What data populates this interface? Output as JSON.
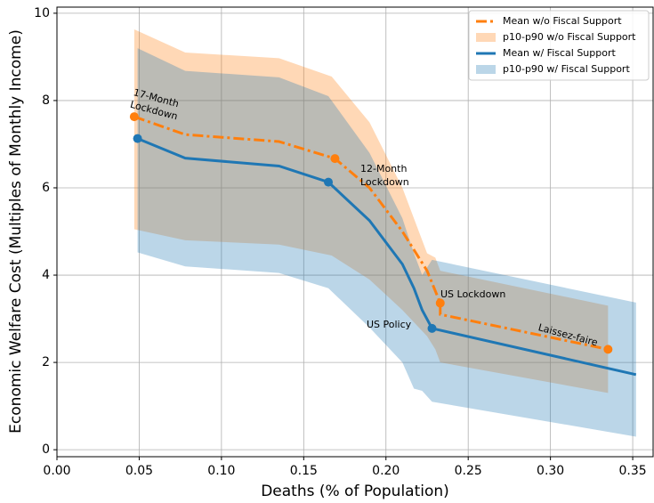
{
  "chart_data": {
    "type": "line",
    "xlabel": "Deaths (% of Population)",
    "ylabel": "Economic Welfare Cost (Multiples of Monthly Income)",
    "xlim": [
      0,
      0.3624
    ],
    "ylim": [
      -0.16,
      10.14
    ],
    "xticks": [
      {
        "value": 0,
        "label": "0.00"
      },
      {
        "value": 0.05,
        "label": "0.05"
      },
      {
        "value": 0.1,
        "label": "0.10"
      },
      {
        "value": 0.15,
        "label": "0.15"
      },
      {
        "value": 0.2,
        "label": "0.20"
      },
      {
        "value": 0.25,
        "label": "0.25"
      },
      {
        "value": 0.3,
        "label": "0.30"
      },
      {
        "value": 0.35,
        "label": "0.35"
      }
    ],
    "yticks": [
      0,
      2,
      4,
      6,
      8,
      10
    ],
    "grid": true,
    "legend": "upper right",
    "bands": [
      {
        "name": "p10-p90 w/o Fiscal Support",
        "color": "#ff7f0e",
        "x": [
          0.047,
          0.078,
          0.135,
          0.167,
          0.19,
          0.21,
          0.225,
          0.23,
          0.233,
          0.335
        ],
        "upper": [
          9.63,
          9.1,
          8.97,
          8.55,
          7.5,
          6.0,
          4.5,
          4.4,
          4.1,
          3.3
        ],
        "lower": [
          5.05,
          4.8,
          4.7,
          4.45,
          3.9,
          3.2,
          2.6,
          2.3,
          2.0,
          1.3
        ]
      },
      {
        "name": "p10-p90 w/ Fiscal Support",
        "color": "#1f77b4",
        "x": [
          0.049,
          0.078,
          0.135,
          0.165,
          0.19,
          0.21,
          0.217,
          0.222,
          0.228,
          0.352
        ],
        "upper": [
          9.2,
          8.68,
          8.53,
          8.1,
          6.8,
          5.3,
          4.5,
          4.0,
          4.35,
          3.37
        ],
        "lower": [
          4.52,
          4.2,
          4.05,
          3.7,
          2.8,
          2.0,
          1.4,
          1.35,
          1.1,
          0.3
        ]
      }
    ],
    "series": [
      {
        "name": "Mean w/o Fiscal Support",
        "color": "#ff7f0e",
        "dash": "dashdot",
        "x": [
          0.047,
          0.078,
          0.135,
          0.169,
          0.19,
          0.21,
          0.225,
          0.233,
          0.233,
          0.335
        ],
        "values": [
          7.63,
          7.22,
          7.06,
          6.67,
          6.0,
          5.0,
          4.1,
          3.36,
          3.1,
          2.3
        ],
        "markers": [
          0,
          3,
          7,
          9
        ]
      },
      {
        "name": "Mean w/ Fiscal Support",
        "color": "#1f77b4",
        "dash": "solid",
        "x": [
          0.049,
          0.078,
          0.135,
          0.165,
          0.19,
          0.21,
          0.217,
          0.222,
          0.228,
          0.352
        ],
        "values": [
          7.13,
          6.68,
          6.5,
          6.13,
          5.25,
          4.25,
          3.7,
          3.2,
          2.78,
          1.72
        ],
        "markers": [
          0,
          3,
          8
        ]
      }
    ],
    "annotations": [
      {
        "lines": [
          "17-Month",
          "Lockdown"
        ]
      },
      {
        "lines": [
          "12-Month",
          "Lockdown"
        ]
      },
      {
        "lines": [
          "US Lockdown"
        ]
      },
      {
        "lines": [
          "US Policy"
        ]
      },
      {
        "lines": [
          "Laissez-faire"
        ]
      }
    ]
  }
}
